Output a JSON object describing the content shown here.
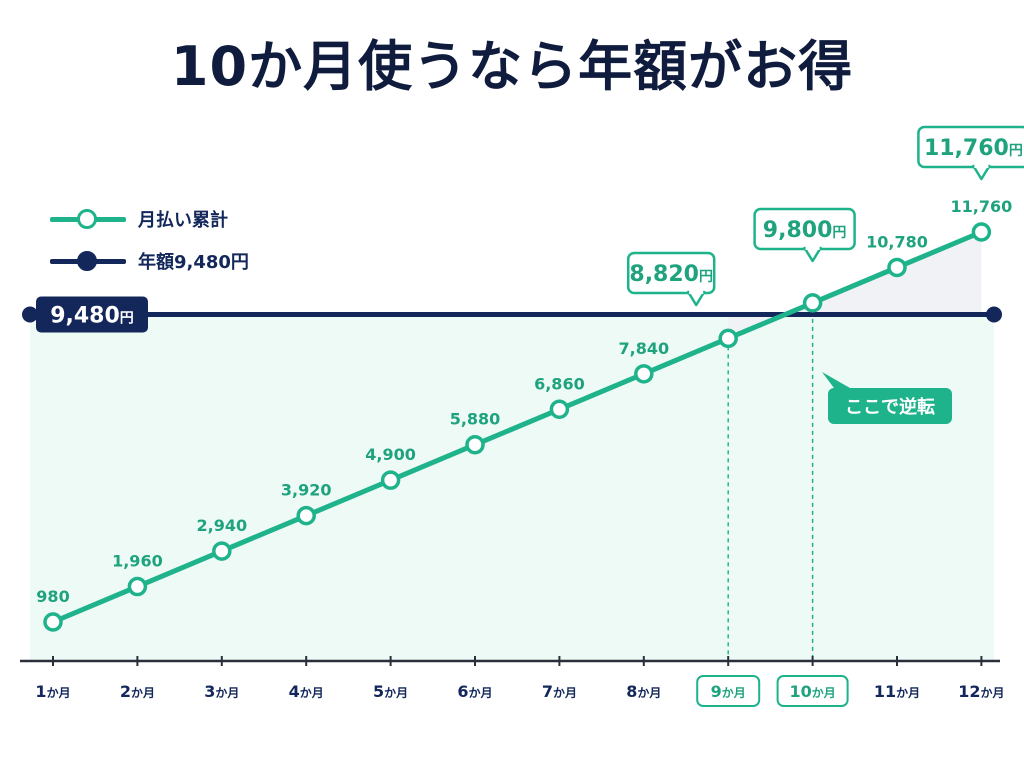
{
  "title": "10か月使うなら年額がお得",
  "legend": {
    "monthly": "月払い累計",
    "annual": "年額9,480円"
  },
  "colors": {
    "monthly": "#1fb38c",
    "annual": "#13275a",
    "fill_below": "#eefaf6",
    "fill_above": "#f1f2f6"
  },
  "icons": {
    "legend_monthly": "green-open-circle-marker",
    "legend_annual": "navy-filled-circle-marker"
  },
  "unit": "円",
  "annual_badge": {
    "value": "9,480",
    "unit": "円"
  },
  "reverse_label": "ここで逆転",
  "callouts": [
    {
      "month": 9,
      "value": "8,820",
      "unit": "円"
    },
    {
      "month": 10,
      "value": "9,800",
      "unit": "円"
    },
    {
      "month": 12,
      "value": "11,760",
      "unit": "円"
    }
  ],
  "chart_data": {
    "type": "line",
    "x": [
      1,
      2,
      3,
      4,
      5,
      6,
      7,
      8,
      9,
      10,
      11,
      12
    ],
    "categories": [
      {
        "num": "1",
        "unit": "か月"
      },
      {
        "num": "2",
        "unit": "か月"
      },
      {
        "num": "3",
        "unit": "か月"
      },
      {
        "num": "4",
        "unit": "か月"
      },
      {
        "num": "5",
        "unit": "か月"
      },
      {
        "num": "6",
        "unit": "か月"
      },
      {
        "num": "7",
        "unit": "か月"
      },
      {
        "num": "8",
        "unit": "か月"
      },
      {
        "num": "9",
        "unit": "か月"
      },
      {
        "num": "10",
        "unit": "か月"
      },
      {
        "num": "11",
        "unit": "か月"
      },
      {
        "num": "12",
        "unit": "か月"
      }
    ],
    "highlighted_months": [
      9,
      10
    ],
    "series": [
      {
        "name": "月払い累計",
        "values": [
          980,
          1960,
          2940,
          3920,
          4900,
          5880,
          6860,
          7840,
          8820,
          9800,
          10780,
          11760
        ],
        "labels": [
          "980",
          "1,960",
          "2,940",
          "3,920",
          "4,900",
          "5,880",
          "6,860",
          "7,840",
          "",
          "",
          "10,780",
          "11,760"
        ]
      },
      {
        "name": "年額9,480円",
        "constant": 9480
      }
    ],
    "xlabel": "",
    "ylabel": "",
    "grid": false
  }
}
